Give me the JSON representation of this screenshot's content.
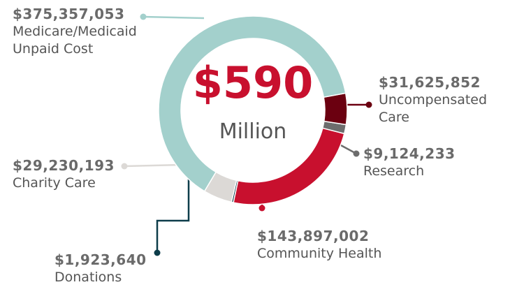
{
  "chart_data": {
    "type": "pie",
    "categories": [
      "Medicare/Medicaid Unpaid Cost",
      "Uncompensated Care",
      "Research",
      "Community Health",
      "Donations",
      "Charity Care"
    ],
    "values": [
      375357053,
      31625852,
      9124233,
      143897002,
      1923640,
      29230193
    ],
    "value_labels": [
      "$375,357,053",
      "$31,625,852",
      "$9,124,233",
      "$143,897,002",
      "$1,923,640",
      "$29,230,193"
    ],
    "colors": [
      "#a3d0cc",
      "#6b0010",
      "#6d6d6d",
      "#c8102e",
      "#0d3d4a",
      "#dcd9d6"
    ],
    "center_value": "$590",
    "center_unit": "Million"
  }
}
